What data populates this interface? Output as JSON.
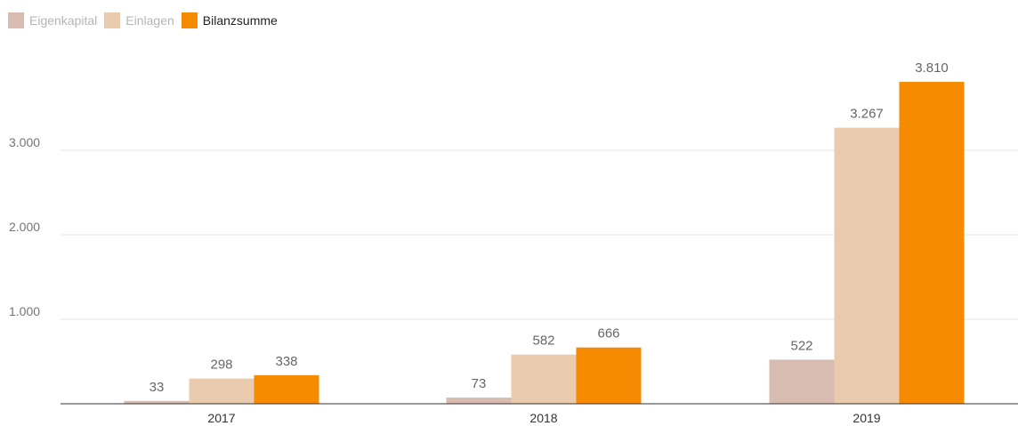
{
  "chart_data": {
    "type": "bar",
    "title": "",
    "xlabel": "",
    "ylabel": "",
    "categories": [
      "2017",
      "2018",
      "2019"
    ],
    "series": [
      {
        "name": "Eigenkapital",
        "values": [
          33,
          73,
          522
        ],
        "labels": [
          "33",
          "73",
          "522"
        ],
        "color": "#d8bbb1"
      },
      {
        "name": "Einlagen",
        "values": [
          298,
          582,
          3267
        ],
        "labels": [
          "298",
          "582",
          "3.267"
        ],
        "color": "#ebcbad"
      },
      {
        "name": "Bilanzsumme",
        "values": [
          338,
          666,
          3810
        ],
        "labels": [
          "338",
          "666",
          "3.810"
        ],
        "color": "#f68a00"
      }
    ],
    "yticks": [
      {
        "value": 1000,
        "label": "1.000"
      },
      {
        "value": 2000,
        "label": "2.000"
      },
      {
        "value": 3000,
        "label": "3.000"
      }
    ],
    "ylim": [
      0,
      4000
    ],
    "grid": true,
    "legend_position": "top-left",
    "legend_highlighted": "Bilanzsumme"
  }
}
